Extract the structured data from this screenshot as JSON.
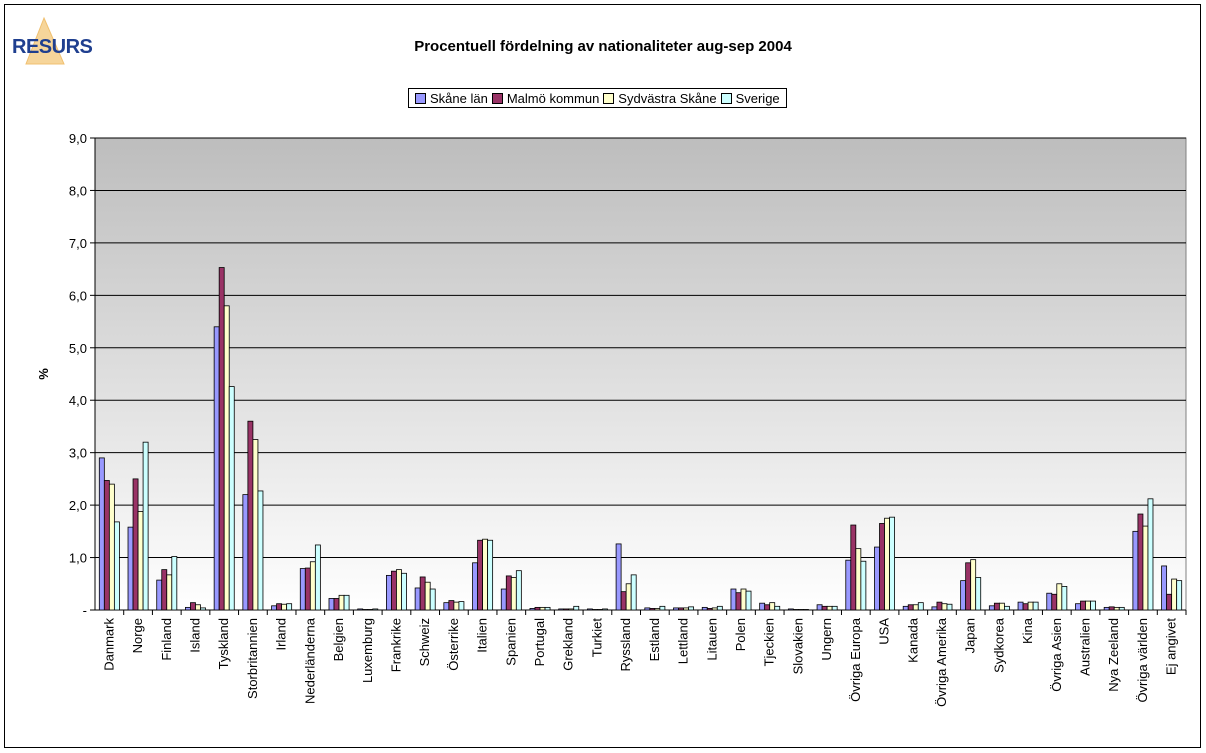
{
  "logo": {
    "text": "RESURS"
  },
  "chart_data": {
    "type": "bar",
    "title": "Procentuell fördelning av nationaliteter aug-sep 2004",
    "xlabel": "",
    "ylabel": "%",
    "ylim": [
      0,
      9
    ],
    "yticks": [
      "-",
      "1,0",
      "2,0",
      "3,0",
      "4,0",
      "5,0",
      "6,0",
      "7,0",
      "8,0",
      "9,0"
    ],
    "grid": true,
    "legend": "top-center",
    "categories": [
      "Danmark",
      "Norge",
      "Finland",
      "Island",
      "Tyskland",
      "Storbritannien",
      "Irland",
      "Nederländerna",
      "Belgien",
      "Luxemburg",
      "Frankrike",
      "Schweiz",
      "Österrike",
      "Italien",
      "Spanien",
      "Portugal",
      "Grekland",
      "Turkiet",
      "Ryssland",
      "Estland",
      "Lettland",
      "Litauen",
      "Polen",
      "Tjeckien",
      "Slovakien",
      "Ungern",
      "Övriga Europa",
      "USA",
      "Kanada",
      "Övriga Amerika",
      "Japan",
      "Sydkorea",
      "Kina",
      "Övriga Asien",
      "Australien",
      "Nya Zeeland",
      "Övriga världen",
      "Ej angivet"
    ],
    "series": [
      {
        "name": "Skåne län",
        "color": "#9999ff",
        "values": [
          2.9,
          1.58,
          0.57,
          0.05,
          5.4,
          2.2,
          0.08,
          0.79,
          0.22,
          0.02,
          0.66,
          0.42,
          0.14,
          0.9,
          0.4,
          0.03,
          0.02,
          0.02,
          1.26,
          0.04,
          0.04,
          0.05,
          0.4,
          0.13,
          0.02,
          0.1,
          0.95,
          1.2,
          0.07,
          0.06,
          0.56,
          0.08,
          0.15,
          0.32,
          0.12,
          0.05,
          1.5,
          0.84
        ]
      },
      {
        "name": "Malmö kommun",
        "color": "#993366",
        "values": [
          2.47,
          2.5,
          0.77,
          0.14,
          6.53,
          3.6,
          0.12,
          0.8,
          0.22,
          0.01,
          0.74,
          0.63,
          0.18,
          1.33,
          0.65,
          0.05,
          0.02,
          0.01,
          0.35,
          0.03,
          0.04,
          0.03,
          0.33,
          0.1,
          0.01,
          0.07,
          1.62,
          1.65,
          0.1,
          0.15,
          0.9,
          0.13,
          0.12,
          0.3,
          0.17,
          0.06,
          1.83,
          0.3
        ]
      },
      {
        "name": "Sydvästra Skåne",
        "color": "#ffffcc",
        "values": [
          2.4,
          1.88,
          0.67,
          0.1,
          5.8,
          3.25,
          0.11,
          0.92,
          0.28,
          0.01,
          0.77,
          0.53,
          0.15,
          1.35,
          0.62,
          0.05,
          0.02,
          0.01,
          0.5,
          0.03,
          0.04,
          0.04,
          0.4,
          0.14,
          0.01,
          0.07,
          1.17,
          1.75,
          0.1,
          0.12,
          0.96,
          0.13,
          0.15,
          0.5,
          0.17,
          0.05,
          1.6,
          0.59
        ]
      },
      {
        "name": "Sverige",
        "color": "#ccffff",
        "values": [
          1.68,
          3.2,
          1.02,
          0.04,
          4.26,
          2.27,
          0.12,
          1.24,
          0.28,
          0.02,
          0.7,
          0.4,
          0.16,
          1.33,
          0.75,
          0.05,
          0.07,
          0.02,
          0.67,
          0.07,
          0.06,
          0.07,
          0.36,
          0.07,
          0.01,
          0.07,
          0.93,
          1.77,
          0.14,
          0.11,
          0.62,
          0.07,
          0.15,
          0.45,
          0.17,
          0.05,
          2.12,
          0.56
        ]
      }
    ]
  }
}
